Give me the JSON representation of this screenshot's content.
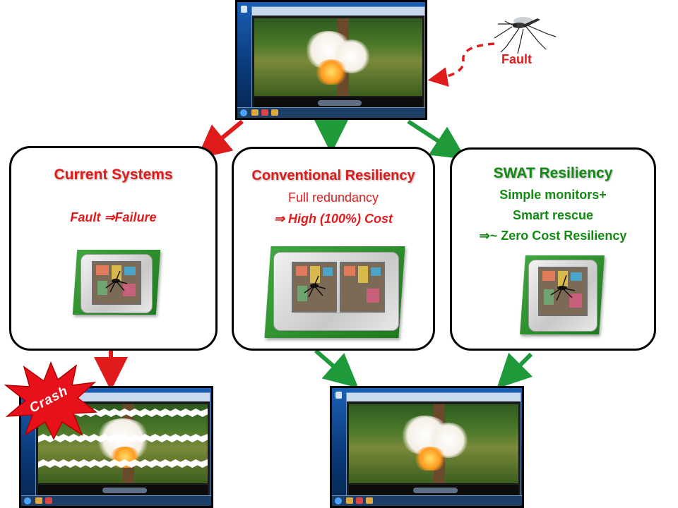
{
  "fault_label": "Fault",
  "crash_label": "Crash",
  "boxes": {
    "current": {
      "title": "Current  Systems",
      "line1_a": "Fault",
      "line1_b": "Failure"
    },
    "conventional": {
      "title": "Conventional Resiliency",
      "line1": "Full redundancy",
      "line2": "High (100%) Cost"
    },
    "swat": {
      "title": "SWAT Resiliency",
      "line1": "Simple monitors+",
      "line2": "Smart rescue",
      "line3_sym": "~",
      "line3": "Zero Cost Resiliency"
    }
  },
  "implies_symbol": "⇒",
  "colors": {
    "red": "#e01b1b",
    "green": "#138a13",
    "arrow_green": "#1f9a3a"
  }
}
